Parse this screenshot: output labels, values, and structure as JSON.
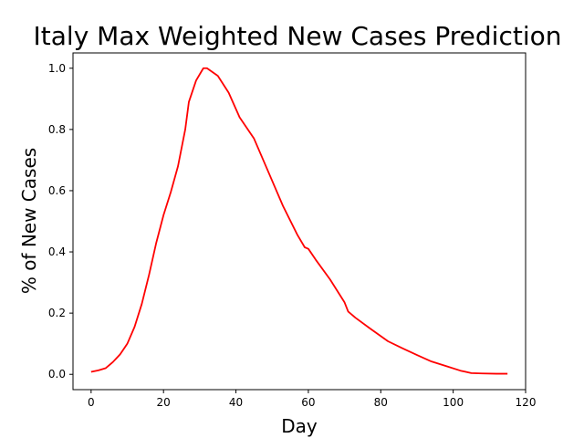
{
  "chart_data": {
    "type": "line",
    "title": "Italy Max Weighted New Cases Prediction",
    "xlabel": "Day",
    "ylabel": "%  of New Cases",
    "xlim": [
      -5,
      120
    ],
    "ylim": [
      -0.05,
      1.05
    ],
    "xticks": [
      0,
      20,
      40,
      60,
      80,
      100,
      120
    ],
    "yticks": [
      0.0,
      0.2,
      0.4,
      0.6,
      0.8,
      1.0
    ],
    "xtick_labels": [
      "0",
      "20",
      "40",
      "60",
      "80",
      "100",
      "120"
    ],
    "ytick_labels": [
      "0.0",
      "0.2",
      "0.4",
      "0.6",
      "0.8",
      "1.0"
    ],
    "grid": false,
    "series": [
      {
        "color": "#ff0000",
        "x": [
          0,
          2,
          4,
          6,
          8,
          10,
          12,
          14,
          16,
          18,
          20,
          22,
          24,
          26,
          27,
          29,
          31,
          32,
          35,
          38,
          41,
          45,
          49,
          53,
          57,
          59,
          60,
          62,
          66,
          70,
          71,
          73,
          77,
          82,
          86,
          90,
          94,
          98,
          102,
          105,
          108,
          112,
          115
        ],
        "y": [
          0.008,
          0.013,
          0.02,
          0.04,
          0.065,
          0.1,
          0.155,
          0.23,
          0.325,
          0.43,
          0.52,
          0.595,
          0.68,
          0.8,
          0.89,
          0.96,
          1.0,
          1.0,
          0.975,
          0.92,
          0.84,
          0.77,
          0.66,
          0.55,
          0.455,
          0.415,
          0.41,
          0.375,
          0.31,
          0.235,
          0.205,
          0.185,
          0.15,
          0.108,
          0.085,
          0.063,
          0.042,
          0.027,
          0.012,
          0.004,
          0.003,
          0.002,
          0.002
        ]
      }
    ]
  }
}
